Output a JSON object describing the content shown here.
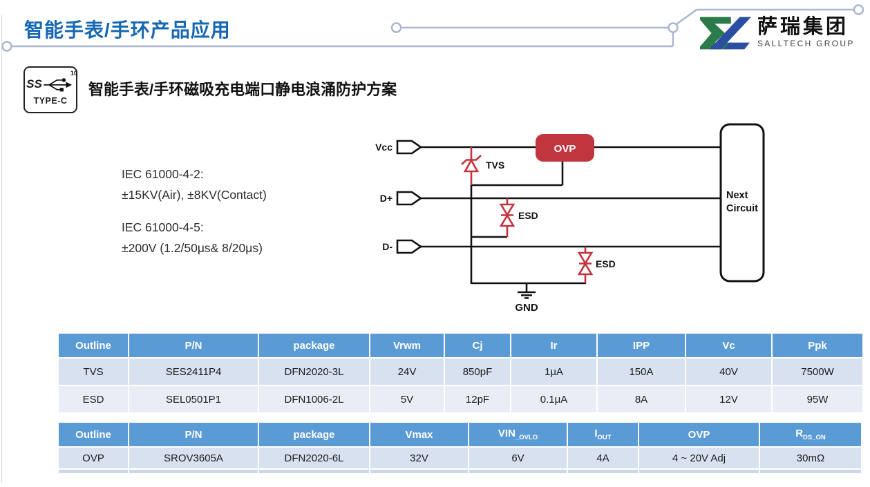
{
  "header": {
    "title": "智能手表/手环产品应用",
    "logo_cn": "萨瑞集团",
    "logo_en": "SALLTECH GROUP"
  },
  "badge": {
    "ss": "SS",
    "sup": "10",
    "label": "TYPE-C"
  },
  "section": {
    "subtitle": "智能手表/手环磁吸充电端口静电浪涌防护方案"
  },
  "iec": {
    "l1": "IEC 61000-4-2:",
    "l2": "±15KV(Air), ±8KV(Contact)",
    "l3": "IEC 61000-4-5:",
    "l4": "±200V  (1.2/50μs& 8/20μs)"
  },
  "circuit": {
    "vcc": "Vcc",
    "dplus": "D+",
    "dminus": "D-",
    "tvs": "TVS",
    "esd1": "ESD",
    "esd2": "ESD",
    "ovp": "OVP",
    "gnd": "GND",
    "next_line1": "Next",
    "next_line2": "Circuit"
  },
  "colors": {
    "title_blue": "#1567b2",
    "table_header_blue": "#5b9bd5",
    "circuit_red": "#c2333c",
    "ovp_fill": "#c1353f",
    "row_dark": "#d8e1f0",
    "row_light": "#e9edf6"
  },
  "table1": {
    "headers": [
      "Outline",
      "P/N",
      "package",
      "Vrwm",
      "Cj",
      "Ir",
      "IPP",
      "Vc",
      "Ppk"
    ],
    "rows": [
      [
        "TVS",
        "SES2411P4",
        "DFN2020-3L",
        "24V",
        "850pF",
        "1μA",
        "150A",
        "40V",
        "7500W"
      ],
      [
        "ESD",
        "SEL0501P1",
        "DFN1006-2L",
        "5V",
        "12pF",
        "0.1μA",
        "8A",
        "12V",
        "95W"
      ]
    ]
  },
  "table2": {
    "headers": [
      {
        "t": "Outline"
      },
      {
        "t": "P/N"
      },
      {
        "t": "package"
      },
      {
        "t": "Vmax"
      },
      {
        "t": "VIN",
        "sub": "_OVLO"
      },
      {
        "t": "I",
        "sub": "OUT"
      },
      {
        "t": "OVP"
      },
      {
        "t": "R",
        "sub": "DS_ON"
      }
    ],
    "rows": [
      [
        "OVP",
        "SROV3605A",
        "DFN2020-6L",
        "32V",
        "6V",
        "4A",
        "4 ~ 20V Adj",
        "30mΩ"
      ]
    ]
  }
}
